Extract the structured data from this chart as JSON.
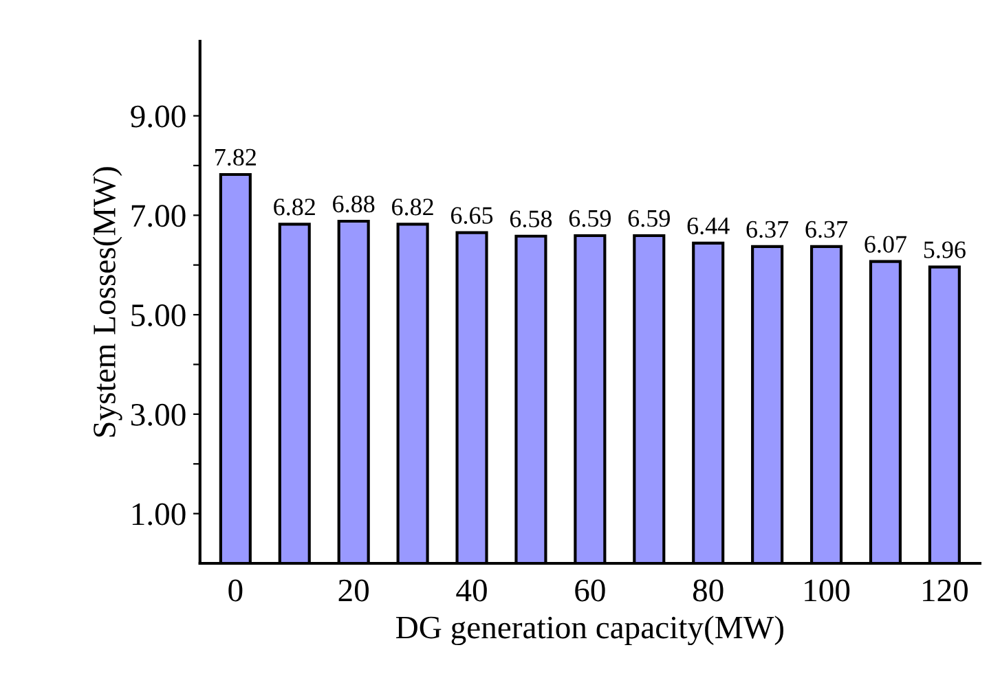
{
  "chart_data": {
    "type": "bar",
    "xlabel": "DG generation capacity(MW)",
    "ylabel": "System Losses(MW)",
    "categories": [
      "0",
      null,
      "20",
      null,
      "40",
      null,
      "60",
      null,
      "80",
      null,
      "100",
      null,
      "120"
    ],
    "values": [
      7.82,
      6.82,
      6.88,
      6.82,
      6.65,
      6.58,
      6.59,
      6.59,
      6.44,
      6.37,
      6.37,
      6.07,
      5.96
    ],
    "color": "#9999ff",
    "data_labels": true,
    "grid": false,
    "ylim": [
      0,
      10.5
    ],
    "yticks": [
      {
        "value": 1,
        "label": "1.00"
      },
      {
        "value": 2,
        "label": null
      },
      {
        "value": 3,
        "label": "3.00"
      },
      {
        "value": 4,
        "label": null
      },
      {
        "value": 5,
        "label": "5.00"
      },
      {
        "value": 6,
        "label": null
      },
      {
        "value": 7,
        "label": "7.00"
      },
      {
        "value": 8,
        "label": null
      },
      {
        "value": 9,
        "label": "9.00"
      }
    ]
  }
}
